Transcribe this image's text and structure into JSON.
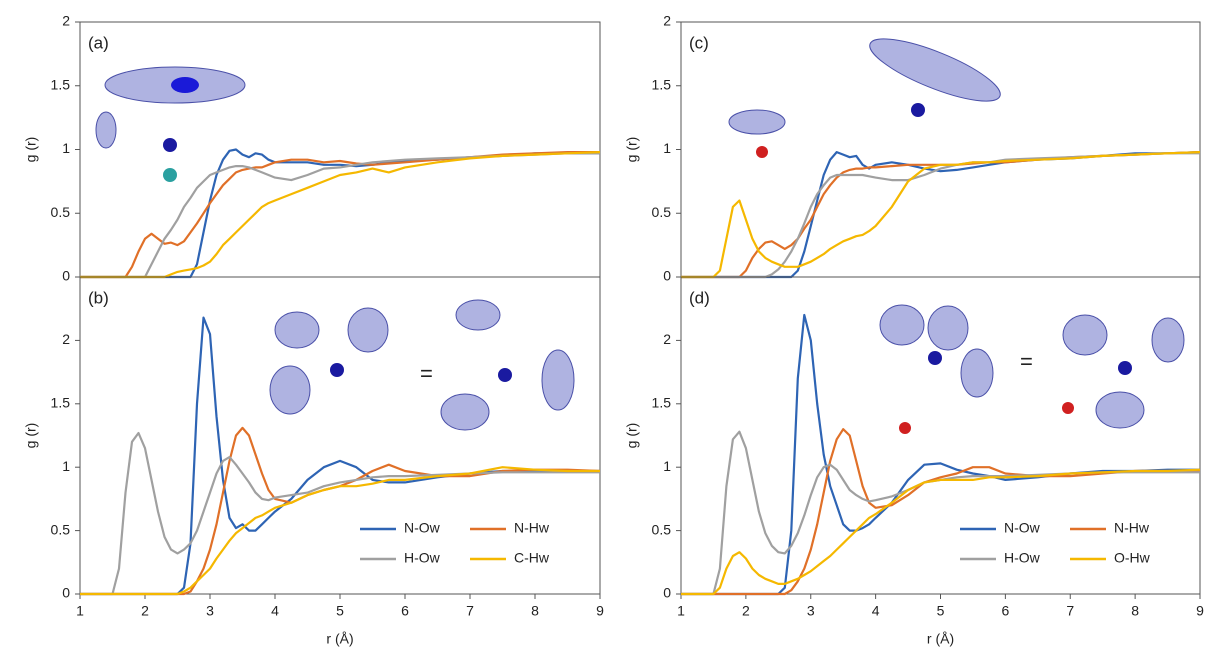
{
  "chart_data": [
    {
      "type": "line",
      "title": "(a)",
      "ylabel": "g (r)",
      "xlim": [
        1,
        9
      ],
      "ylim": [
        0,
        2
      ],
      "yticks": [
        0,
        0.5,
        1,
        1.5,
        2
      ],
      "x": [
        1,
        1.5,
        1.6,
        1.7,
        1.8,
        1.9,
        2,
        2.1,
        2.2,
        2.3,
        2.4,
        2.5,
        2.6,
        2.7,
        2.8,
        2.9,
        3,
        3.1,
        3.2,
        3.3,
        3.4,
        3.5,
        3.6,
        3.7,
        3.8,
        3.9,
        4,
        4.25,
        4.5,
        4.75,
        5,
        5.25,
        5.5,
        5.75,
        6,
        6.5,
        7,
        7.5,
        8,
        8.5,
        9
      ],
      "series": [
        {
          "color": "#2e64b4",
          "values": [
            0,
            0,
            0,
            0,
            0,
            0,
            0,
            0,
            0,
            0,
            0,
            0,
            0,
            0,
            0.1,
            0.35,
            0.6,
            0.8,
            0.92,
            0.99,
            1.0,
            0.96,
            0.94,
            0.97,
            0.96,
            0.92,
            0.9,
            0.9,
            0.9,
            0.88,
            0.88,
            0.87,
            0.88,
            0.9,
            0.91,
            0.92,
            0.94,
            0.95,
            0.97,
            0.97,
            0.97
          ]
        },
        {
          "color": "#e07028",
          "values": [
            0,
            0,
            0,
            0,
            0.08,
            0.2,
            0.3,
            0.34,
            0.3,
            0.26,
            0.27,
            0.25,
            0.28,
            0.35,
            0.42,
            0.5,
            0.58,
            0.65,
            0.72,
            0.77,
            0.82,
            0.84,
            0.85,
            0.86,
            0.86,
            0.88,
            0.9,
            0.92,
            0.92,
            0.9,
            0.91,
            0.89,
            0.88,
            0.89,
            0.9,
            0.92,
            0.94,
            0.96,
            0.97,
            0.98,
            0.98
          ]
        },
        {
          "color": "#a0a0a0",
          "values": [
            0,
            0,
            0,
            0,
            0,
            0,
            0,
            0.1,
            0.2,
            0.3,
            0.37,
            0.45,
            0.55,
            0.62,
            0.7,
            0.75,
            0.8,
            0.82,
            0.84,
            0.86,
            0.87,
            0.87,
            0.86,
            0.84,
            0.82,
            0.8,
            0.78,
            0.76,
            0.8,
            0.85,
            0.86,
            0.88,
            0.9,
            0.91,
            0.92,
            0.93,
            0.94,
            0.95,
            0.96,
            0.97,
            0.97
          ]
        },
        {
          "color": "#f5b800",
          "values": [
            0,
            0,
            0,
            0,
            0,
            0,
            0,
            0,
            0,
            0,
            0.02,
            0.04,
            0.05,
            0.06,
            0.07,
            0.09,
            0.12,
            0.18,
            0.25,
            0.3,
            0.35,
            0.4,
            0.45,
            0.5,
            0.55,
            0.58,
            0.6,
            0.65,
            0.7,
            0.75,
            0.8,
            0.82,
            0.85,
            0.82,
            0.86,
            0.9,
            0.93,
            0.95,
            0.96,
            0.97,
            0.98
          ]
        }
      ]
    },
    {
      "type": "line",
      "title": "(b)",
      "ylabel": "g (r)",
      "xlabel": "r (Å)",
      "xlim": [
        1,
        9
      ],
      "xticks": [
        1,
        2,
        3,
        4,
        5,
        6,
        7,
        8,
        9
      ],
      "ylim": [
        0,
        2.5
      ],
      "yticks": [
        0,
        0.5,
        1,
        1.5,
        2
      ],
      "legend": "lower right",
      "x": [
        1,
        1.5,
        1.6,
        1.7,
        1.8,
        1.9,
        2,
        2.1,
        2.2,
        2.3,
        2.4,
        2.5,
        2.6,
        2.7,
        2.8,
        2.9,
        3,
        3.1,
        3.2,
        3.3,
        3.4,
        3.5,
        3.6,
        3.7,
        3.8,
        3.9,
        4,
        4.25,
        4.5,
        4.75,
        5,
        5.25,
        5.5,
        5.75,
        6,
        6.5,
        7,
        7.5,
        8,
        8.5,
        9
      ],
      "series": [
        {
          "name": "N-Ow",
          "color": "#2e64b4",
          "values": [
            0,
            0,
            0,
            0,
            0,
            0,
            0,
            0,
            0,
            0,
            0,
            0,
            0.05,
            0.4,
            1.5,
            2.18,
            2.05,
            1.4,
            0.9,
            0.6,
            0.52,
            0.55,
            0.5,
            0.5,
            0.55,
            0.6,
            0.65,
            0.75,
            0.9,
            1.0,
            1.05,
            1.0,
            0.9,
            0.88,
            0.88,
            0.92,
            0.95,
            0.97,
            0.97,
            0.97,
            0.97
          ]
        },
        {
          "name": "N-Hw",
          "color": "#e07028",
          "values": [
            0,
            0,
            0,
            0,
            0,
            0,
            0,
            0,
            0,
            0,
            0,
            0,
            0,
            0.02,
            0.1,
            0.2,
            0.35,
            0.55,
            0.8,
            1.05,
            1.25,
            1.31,
            1.25,
            1.1,
            0.95,
            0.82,
            0.75,
            0.72,
            0.78,
            0.82,
            0.85,
            0.9,
            0.97,
            1.02,
            0.97,
            0.93,
            0.93,
            0.97,
            0.98,
            0.98,
            0.97
          ]
        },
        {
          "name": "H-Ow",
          "color": "#a0a0a0",
          "values": [
            0,
            0,
            0.2,
            0.8,
            1.2,
            1.27,
            1.15,
            0.9,
            0.65,
            0.45,
            0.35,
            0.32,
            0.35,
            0.4,
            0.5,
            0.65,
            0.8,
            0.95,
            1.05,
            1.08,
            1.02,
            0.95,
            0.88,
            0.8,
            0.75,
            0.74,
            0.76,
            0.78,
            0.8,
            0.85,
            0.88,
            0.9,
            0.92,
            0.93,
            0.93,
            0.94,
            0.95,
            0.96,
            0.96,
            0.96,
            0.96
          ]
        },
        {
          "name": "C-Hw",
          "color": "#f5b800",
          "values": [
            0,
            0,
            0,
            0,
            0,
            0,
            0,
            0,
            0,
            0,
            0,
            0,
            0.02,
            0.05,
            0.1,
            0.15,
            0.2,
            0.28,
            0.35,
            0.42,
            0.48,
            0.52,
            0.56,
            0.6,
            0.62,
            0.65,
            0.68,
            0.72,
            0.78,
            0.82,
            0.85,
            0.85,
            0.87,
            0.9,
            0.9,
            0.93,
            0.95,
            1.0,
            0.98,
            0.97,
            0.97
          ]
        }
      ]
    },
    {
      "type": "line",
      "title": "(c)",
      "ylabel": "g (r)",
      "xlim": [
        1,
        9
      ],
      "ylim": [
        0,
        2
      ],
      "yticks": [
        0,
        0.5,
        1,
        1.5,
        2
      ],
      "x": [
        1,
        1.5,
        1.6,
        1.7,
        1.8,
        1.9,
        2,
        2.1,
        2.2,
        2.3,
        2.4,
        2.5,
        2.6,
        2.7,
        2.8,
        2.9,
        3,
        3.1,
        3.2,
        3.3,
        3.4,
        3.5,
        3.6,
        3.7,
        3.8,
        3.9,
        4,
        4.25,
        4.5,
        4.75,
        5,
        5.25,
        5.5,
        5.75,
        6,
        6.5,
        7,
        7.5,
        8,
        8.5,
        9
      ],
      "series": [
        {
          "color": "#2e64b4",
          "values": [
            0,
            0,
            0,
            0,
            0,
            0,
            0,
            0,
            0,
            0,
            0,
            0,
            0,
            0,
            0.05,
            0.2,
            0.4,
            0.6,
            0.8,
            0.92,
            0.98,
            0.96,
            0.94,
            0.95,
            0.88,
            0.85,
            0.88,
            0.9,
            0.88,
            0.85,
            0.83,
            0.84,
            0.86,
            0.88,
            0.9,
            0.92,
            0.93,
            0.95,
            0.97,
            0.97,
            0.98
          ]
        },
        {
          "color": "#e07028",
          "values": [
            0,
            0,
            0,
            0,
            0,
            0,
            0.05,
            0.15,
            0.22,
            0.27,
            0.28,
            0.25,
            0.22,
            0.25,
            0.3,
            0.38,
            0.45,
            0.55,
            0.65,
            0.72,
            0.78,
            0.82,
            0.84,
            0.85,
            0.85,
            0.86,
            0.86,
            0.87,
            0.88,
            0.88,
            0.88,
            0.88,
            0.89,
            0.9,
            0.9,
            0.92,
            0.94,
            0.95,
            0.96,
            0.97,
            0.98
          ]
        },
        {
          "color": "#a0a0a0",
          "values": [
            0,
            0,
            0,
            0,
            0,
            0,
            0,
            0,
            0,
            0,
            0.02,
            0.06,
            0.12,
            0.2,
            0.3,
            0.42,
            0.55,
            0.65,
            0.72,
            0.78,
            0.8,
            0.8,
            0.8,
            0.8,
            0.8,
            0.79,
            0.78,
            0.76,
            0.76,
            0.8,
            0.85,
            0.88,
            0.9,
            0.9,
            0.92,
            0.93,
            0.94,
            0.95,
            0.96,
            0.97,
            0.97
          ]
        },
        {
          "color": "#f5b800",
          "values": [
            0,
            0,
            0.05,
            0.3,
            0.55,
            0.6,
            0.45,
            0.3,
            0.2,
            0.15,
            0.12,
            0.1,
            0.08,
            0.08,
            0.08,
            0.1,
            0.12,
            0.15,
            0.18,
            0.22,
            0.25,
            0.28,
            0.3,
            0.32,
            0.33,
            0.36,
            0.4,
            0.55,
            0.75,
            0.85,
            0.88,
            0.88,
            0.9,
            0.9,
            0.91,
            0.92,
            0.93,
            0.95,
            0.96,
            0.97,
            0.98
          ]
        }
      ]
    },
    {
      "type": "line",
      "title": "(d)",
      "ylabel": "g (r)",
      "xlabel": "r (Å)",
      "xlim": [
        1,
        9
      ],
      "xticks": [
        1,
        2,
        3,
        4,
        5,
        6,
        7,
        8,
        9
      ],
      "ylim": [
        0,
        2.5
      ],
      "yticks": [
        0,
        0.5,
        1,
        1.5,
        2
      ],
      "legend": "lower right",
      "x": [
        1,
        1.5,
        1.6,
        1.7,
        1.8,
        1.9,
        2,
        2.1,
        2.2,
        2.3,
        2.4,
        2.5,
        2.6,
        2.7,
        2.8,
        2.9,
        3,
        3.1,
        3.2,
        3.3,
        3.4,
        3.5,
        3.6,
        3.7,
        3.8,
        3.9,
        4,
        4.25,
        4.5,
        4.75,
        5,
        5.25,
        5.5,
        5.75,
        6,
        6.5,
        7,
        7.5,
        8,
        8.5,
        9
      ],
      "series": [
        {
          "name": "N-Ow",
          "color": "#2e64b4",
          "values": [
            0,
            0,
            0,
            0,
            0,
            0,
            0,
            0,
            0,
            0,
            0,
            0,
            0.05,
            0.5,
            1.7,
            2.2,
            2.0,
            1.5,
            1.1,
            0.85,
            0.7,
            0.55,
            0.5,
            0.5,
            0.52,
            0.55,
            0.6,
            0.72,
            0.9,
            1.02,
            1.03,
            0.98,
            0.95,
            0.93,
            0.9,
            0.92,
            0.95,
            0.97,
            0.97,
            0.98,
            0.98
          ]
        },
        {
          "name": "N-Hw",
          "color": "#e07028",
          "values": [
            0,
            0,
            0,
            0,
            0,
            0,
            0,
            0,
            0,
            0,
            0,
            0,
            0,
            0.03,
            0.1,
            0.2,
            0.35,
            0.55,
            0.8,
            1.05,
            1.22,
            1.3,
            1.25,
            1.05,
            0.85,
            0.72,
            0.68,
            0.7,
            0.78,
            0.88,
            0.92,
            0.95,
            1.0,
            1.0,
            0.95,
            0.93,
            0.93,
            0.95,
            0.97,
            0.97,
            0.97
          ]
        },
        {
          "name": "H-Ow",
          "color": "#a0a0a0",
          "values": [
            0,
            0,
            0.2,
            0.85,
            1.22,
            1.28,
            1.15,
            0.9,
            0.65,
            0.48,
            0.38,
            0.33,
            0.32,
            0.38,
            0.48,
            0.62,
            0.78,
            0.92,
            1.0,
            1.02,
            0.98,
            0.9,
            0.82,
            0.78,
            0.75,
            0.73,
            0.74,
            0.77,
            0.82,
            0.88,
            0.9,
            0.92,
            0.93,
            0.93,
            0.93,
            0.94,
            0.95,
            0.96,
            0.96,
            0.96,
            0.96
          ]
        },
        {
          "name": "O-Hw",
          "color": "#f5b800",
          "values": [
            0,
            0,
            0.05,
            0.2,
            0.3,
            0.33,
            0.28,
            0.2,
            0.15,
            0.12,
            0.1,
            0.08,
            0.08,
            0.1,
            0.12,
            0.15,
            0.18,
            0.22,
            0.26,
            0.3,
            0.35,
            0.4,
            0.45,
            0.5,
            0.55,
            0.6,
            0.63,
            0.72,
            0.82,
            0.88,
            0.9,
            0.9,
            0.9,
            0.92,
            0.92,
            0.93,
            0.95,
            0.96,
            0.97,
            0.97,
            0.98
          ]
        }
      ]
    }
  ]
}
